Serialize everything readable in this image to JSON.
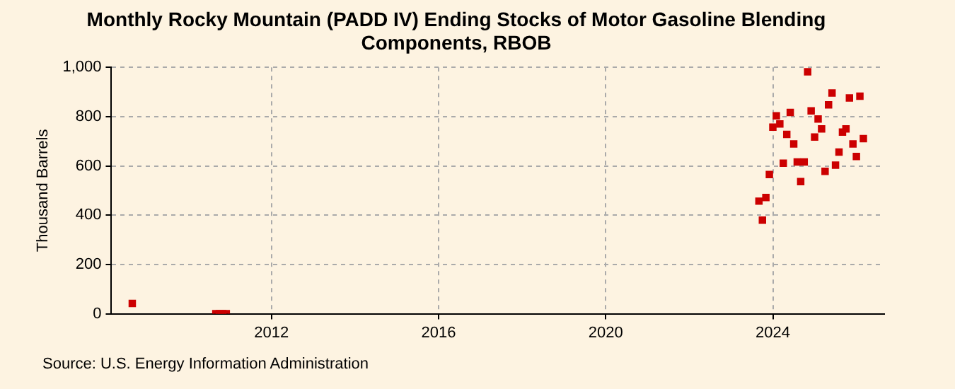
{
  "chart_data": {
    "type": "scatter",
    "title": "Monthly Rocky Mountain (PADD IV) Ending Stocks of Motor Gasoline Blending Components, RBOB",
    "ylabel": "Thousand Barrels",
    "annotations": [
      "Source: U.S. Energy Information Administration"
    ],
    "x": [
      "2008-09",
      "2010-09",
      "2010-10",
      "2010-11",
      "2010-12",
      "2023-09",
      "2023-10",
      "2023-11",
      "2023-12",
      "2024-01",
      "2024-02",
      "2024-03",
      "2024-04",
      "2024-05",
      "2024-06",
      "2024-07",
      "2024-08",
      "2024-09",
      "2024-10",
      "2024-11",
      "2024-12",
      "2025-01",
      "2025-02",
      "2025-03",
      "2025-04",
      "2025-05",
      "2025-06",
      "2025-07",
      "2025-08",
      "2025-09",
      "2025-10",
      "2025-11",
      "2025-12",
      "2026-01",
      "2026-02",
      "2026-03"
    ],
    "series": [
      {
        "color": "#cc0000",
        "values": [
          42,
          0,
          0,
          0,
          0,
          457,
          380,
          472,
          565,
          757,
          803,
          770,
          611,
          728,
          817,
          689,
          616,
          536,
          616,
          982,
          823,
          717,
          790,
          750,
          578,
          848,
          896,
          603,
          656,
          737,
          750,
          876,
          689,
          638,
          883,
          711
        ]
      }
    ],
    "xlim": [
      "2008-03",
      "2026-09"
    ],
    "xticks": [
      {
        "value": "2012",
        "label": "2012"
      },
      {
        "value": "2016",
        "label": "2016"
      },
      {
        "value": "2020",
        "label": "2020"
      },
      {
        "value": "2024",
        "label": "2024"
      }
    ],
    "ylim": [
      0,
      1000
    ],
    "yticks": [
      {
        "value": 0,
        "label": "0"
      },
      {
        "value": 200,
        "label": "200"
      },
      {
        "value": 400,
        "label": "400"
      },
      {
        "value": 600,
        "label": "600"
      },
      {
        "value": 800,
        "label": "800"
      },
      {
        "value": 1000,
        "label": "1,000"
      }
    ],
    "grid": true,
    "marker": "square",
    "legend": false
  }
}
